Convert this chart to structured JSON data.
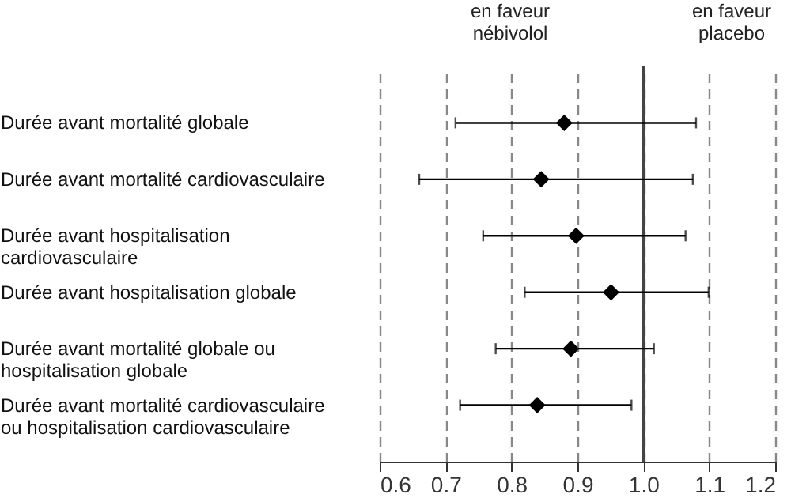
{
  "chart_data": {
    "type": "scatter",
    "orientation": "horizontal",
    "categories": [
      "Durée avant mortalité globale",
      "Durée avant mortalité cardiovasculaire",
      "Durée avant hospitalisation\ncardiovasculaire",
      "Durée avant hospitalisation globale",
      "Durée avant mortalité globale ou\nhospitalisation globale",
      "Durée avant mortalité cardiovasculaire\nou hospitalisation cardiovasculaire"
    ],
    "series": [
      {
        "color": "#000000",
        "values": [
          0.88,
          0.845,
          0.898,
          0.951,
          0.89,
          0.839
        ],
        "errors": [
          [
            0.715,
            1.08
          ],
          [
            0.66,
            1.075
          ],
          [
            0.757,
            1.064
          ],
          [
            0.82,
            1.099
          ],
          [
            0.776,
            1.016
          ],
          [
            0.722,
            0.982
          ]
        ]
      }
    ],
    "xlim": [
      0.6,
      1.2
    ],
    "xticks": [
      {
        "value": 0.6,
        "label": "0.6"
      },
      {
        "value": 0.7,
        "label": "0.7"
      },
      {
        "value": 0.8,
        "label": "0.8"
      },
      {
        "value": 0.9,
        "label": "0.9"
      },
      {
        "value": 1.0,
        "label": "1.0"
      },
      {
        "value": 1.1,
        "label": "1.1"
      },
      {
        "value": 1.2,
        "label": "1.2"
      }
    ],
    "grid": "x",
    "marker": "diamond",
    "line_style": "dashed",
    "ref_lines": [
      {
        "axis": "x",
        "value": 1.0,
        "color": "#444444",
        "line_style": "solid"
      }
    ],
    "annotations": [
      "en faveur\nnébivolol",
      "en faveur\nplacebo"
    ]
  }
}
